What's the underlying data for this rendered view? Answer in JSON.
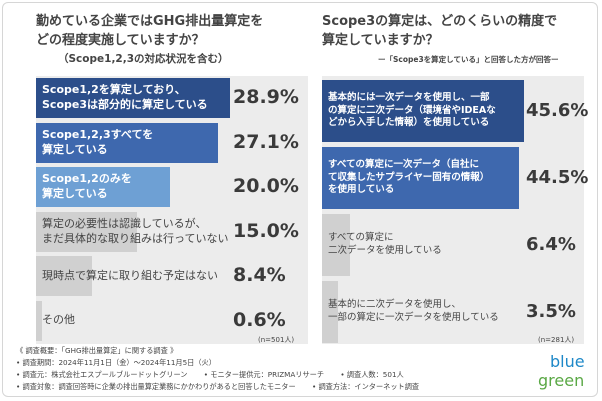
{
  "left": {
    "title_line1": "勤めている企業ではGHG排出量算定を",
    "title_line2": "どの程度実施していますか？",
    "subtitle": "（Scope1,2,3の対応状況を含む）",
    "base_n": "(n=501人)"
  },
  "right": {
    "title_line1": "Scope3の算定は、どのくらいの精度で",
    "title_line2": "算定していますか？",
    "subtitle": "ー「Scope3を算定している」と回答した方が回答ー",
    "base_n": "(n=281人)"
  },
  "chart_data": [
    {
      "type": "bar",
      "orientation": "horizontal",
      "categories": [
        "Scope1,2を算定しており、Scope3は部分的に算定している",
        "Scope1,2,3すべてを算定している",
        "Scope1,2のみを算定している",
        "算定の必要性は認識しているが、まだ具体的な取り組みは行っていない",
        "現時点で算定に取り組む予定はない",
        "その他"
      ],
      "label_lines": [
        [
          "Scope1,2を算定しており、",
          "Scope3は部分的に算定している"
        ],
        [
          "Scope1,2,3すべてを",
          "算定している"
        ],
        [
          "Scope1,2のみを",
          "算定している"
        ],
        [
          "算定の必要性は認識しているが、",
          "まだ具体的な取り組みは行っていない"
        ],
        [
          "現時点で算定に取り組む予定はない"
        ],
        [
          "その他"
        ]
      ],
      "values": [
        28.9,
        27.1,
        20.0,
        15.0,
        8.4,
        0.6
      ],
      "value_labels": [
        "28.9%",
        "27.1%",
        "20.0%",
        "15.0%",
        "8.4%",
        "0.6%"
      ],
      "colors": [
        "#2c4e8a",
        "#3e68ae",
        "#6ea0d4",
        "#d0d0d0",
        "#d0d0d0",
        "#d0d0d0"
      ],
      "label_colors": [
        "#ffffff",
        "#ffffff",
        "#ffffff",
        "#444444",
        "#444444",
        "#444444"
      ],
      "max": 28.9,
      "grid": false
    },
    {
      "type": "bar",
      "orientation": "horizontal",
      "categories": [
        "基本的には一次データを使用し、一部の算定に二次データ（環境省やIDEAなどから入手した情報）を使用している",
        "すべての算定に一次データ（自社にて収集したサプライヤー固有の情報）を使用している",
        "すべての算定に二次データを使用している",
        "基本的に二次データを使用し、一部の算定に一次データを使用している"
      ],
      "label_lines": [
        [
          "基本的には一次データを使用し、一部",
          "の算定に二次データ（環境省やIDEAな",
          "どから入手した情報）を使用している"
        ],
        [
          "すべての算定に一次データ（自社に",
          "て収集したサプライヤー固有の情報）",
          "を使用している"
        ],
        [
          "すべての算定に",
          "二次データを使用している"
        ],
        [
          "基本的に二次データを使用し、",
          "一部の算定に一次データを使用している"
        ]
      ],
      "values": [
        45.6,
        44.5,
        6.4,
        3.5
      ],
      "value_labels": [
        "45.6%",
        "44.5%",
        "6.4%",
        "3.5%"
      ],
      "colors": [
        "#2c4e8a",
        "#3e68ae",
        "#d0d0d0",
        "#d0d0d0"
      ],
      "label_colors": [
        "#ffffff",
        "#ffffff",
        "#444444",
        "#444444"
      ],
      "max": 45.6,
      "grid": false
    }
  ],
  "footer": {
    "line1": "《 調査概要：「GHG排出量算定」に関する調査 》",
    "line2": "• 調査期間：2024年11月1日（金）～2024年11月5日（火）",
    "line3a": "• 調査元：株式会社エスプールブルードットグリーン",
    "line3b": "• モニター提供元：PRIZMAリサーチ",
    "line3c": "• 調査人数：501人",
    "line4a": "• 調査対象：調査回答時に企業の排出量算定業務にかかわりがあると回答したモニター",
    "line4b": "• 調査方法：インターネット調査"
  },
  "logo": {
    "line1": "blue",
    "line2": "green",
    "color_blue": "#1e88c8",
    "color_green": "#5aa845"
  }
}
